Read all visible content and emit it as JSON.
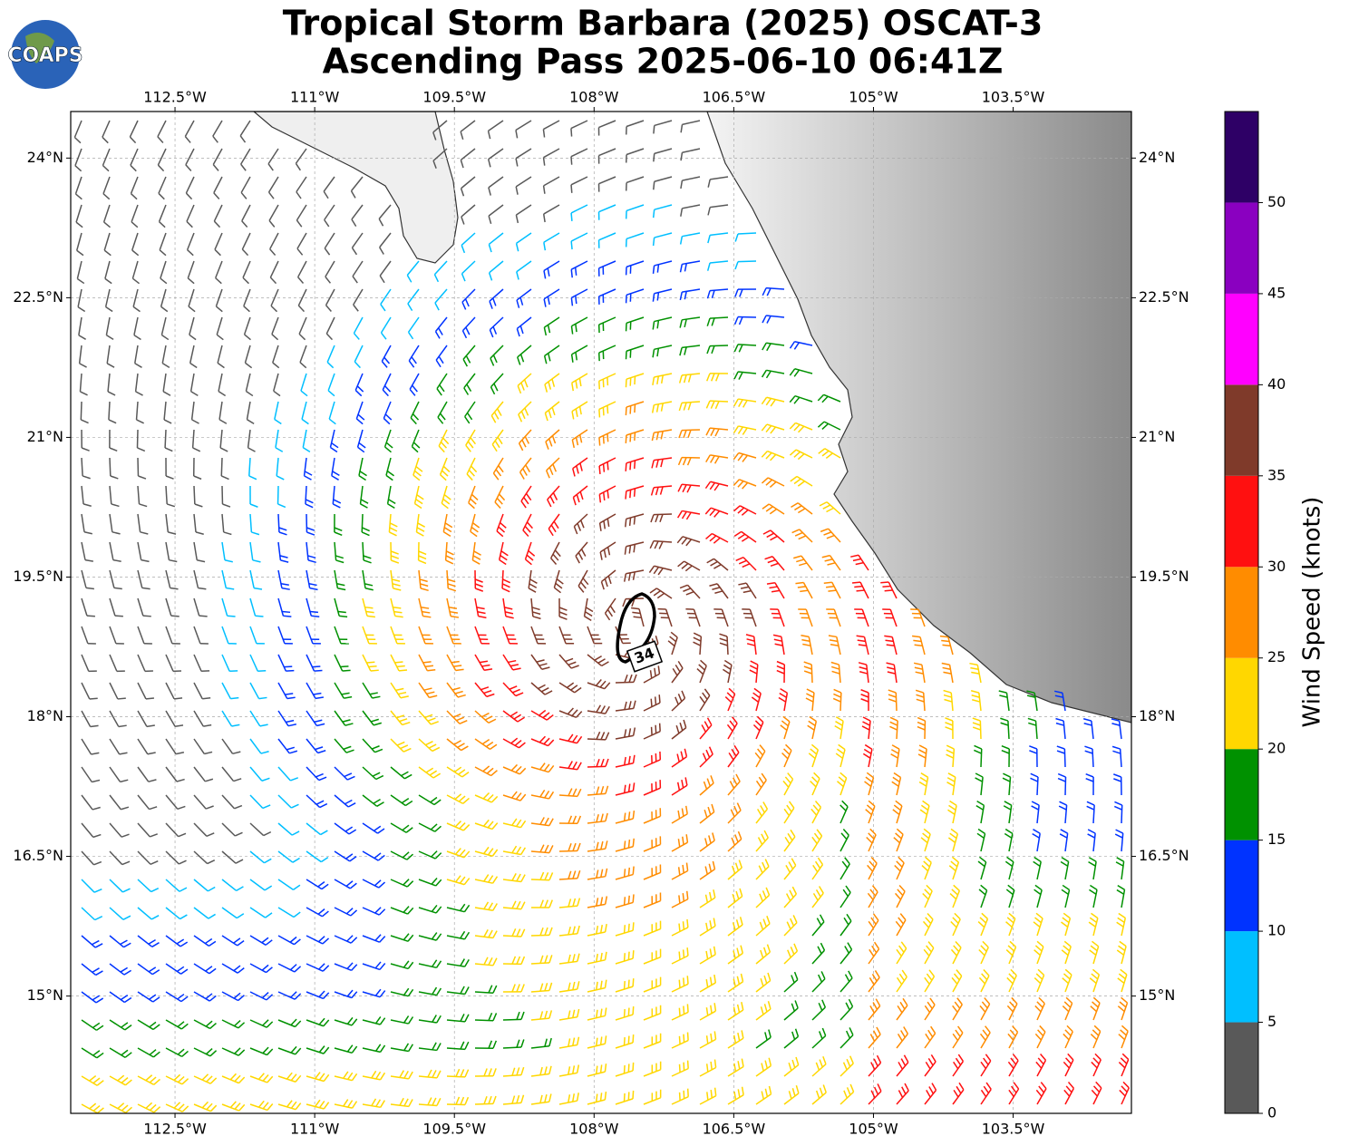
{
  "title": {
    "line1": "Tropical Storm Barbara (2025) OSCAT-3",
    "line2": "Ascending Pass 2025-06-10 06:41Z"
  },
  "logo": "COAPS",
  "map": {
    "xlim": [
      -113.62,
      -102.23
    ],
    "ylim": [
      13.74,
      24.5
    ],
    "xticks": [
      {
        "value": -112.5,
        "label": "112.5°W"
      },
      {
        "value": -111,
        "label": "111°W"
      },
      {
        "value": -109.5,
        "label": "109.5°W"
      },
      {
        "value": -108,
        "label": "108°W"
      },
      {
        "value": -106.5,
        "label": "106.5°W"
      },
      {
        "value": -105,
        "label": "105°W"
      },
      {
        "value": -103.5,
        "label": "103.5°W"
      }
    ],
    "yticks": [
      {
        "value": 15,
        "label": "15°N"
      },
      {
        "value": 16.5,
        "label": "16.5°N"
      },
      {
        "value": 18,
        "label": "18°N"
      },
      {
        "value": 19.5,
        "label": "19.5°N"
      },
      {
        "value": 21,
        "label": "21°N"
      },
      {
        "value": 22.5,
        "label": "22.5°N"
      },
      {
        "value": 24,
        "label": "24°N"
      }
    ],
    "grid": true,
    "wind_radius_label": "34"
  },
  "colorbar": {
    "label": "Wind Speed (knots)",
    "lim": [
      0,
      55
    ],
    "ticks": [
      0,
      5,
      10,
      15,
      20,
      25,
      30,
      35,
      40,
      45,
      50
    ],
    "colors": [
      "#595959",
      "#00bfff",
      "#0033ff",
      "#009100",
      "#ffd700",
      "#ff8c00",
      "#ff1010",
      "#7f3a2a",
      "#ff00ff",
      "#8a00c0",
      "#2e0066"
    ]
  }
}
